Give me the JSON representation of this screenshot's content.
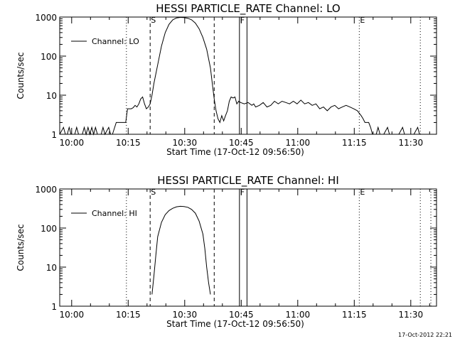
{
  "stamp": "17-Oct-2012 22:21",
  "chart_data": [
    {
      "type": "line",
      "title": "HESSI PARTICLE_RATE Channel: LO",
      "xlabel": "Start Time (17-Oct-12 09:56:50)",
      "ylabel": "Counts/sec",
      "x_unit": "minutes since 09:56:50",
      "xlim": [
        0,
        100
      ],
      "ylim": [
        1,
        1000
      ],
      "yscale": "log",
      "xticks": [
        {
          "x": 3.17,
          "label": "10:00"
        },
        {
          "x": 18.17,
          "label": "10:15"
        },
        {
          "x": 33.17,
          "label": "10:30"
        },
        {
          "x": 48.17,
          "label": "10:45"
        },
        {
          "x": 63.17,
          "label": "11:00"
        },
        {
          "x": 78.17,
          "label": "11:15"
        },
        {
          "x": 93.17,
          "label": "11:30"
        }
      ],
      "yticks": [
        {
          "y": 1,
          "label": "1"
        },
        {
          "y": 10,
          "label": "10"
        },
        {
          "y": 100,
          "label": "100"
        },
        {
          "y": 1000,
          "label": "1000"
        }
      ],
      "markers": [
        {
          "label": "S",
          "x": 24.0,
          "style": "dashed"
        },
        {
          "label": "",
          "x": 41.0,
          "style": "dashed"
        },
        {
          "label": "F",
          "x": 47.7,
          "style": "solid"
        },
        {
          "label": "",
          "x": 49.7,
          "style": "solid"
        },
        {
          "label": "E",
          "x": 79.5,
          "style": "dotted"
        },
        {
          "label": "",
          "x": 17.7,
          "style": "dotted"
        },
        {
          "label": "",
          "x": 95.7,
          "style": "dotted"
        }
      ],
      "legend": "top-left",
      "series": [
        {
          "name": "Channel: LO",
          "points": [
            [
              0,
              1
            ],
            [
              1,
              1.5
            ],
            [
              1.5,
              1
            ],
            [
              2,
              1
            ],
            [
              2.5,
              1.5
            ],
            [
              3,
              1
            ],
            [
              4,
              1
            ],
            [
              4.5,
              1.5
            ],
            [
              5,
              1
            ],
            [
              6,
              1
            ],
            [
              6.5,
              1.5
            ],
            [
              7,
              1
            ],
            [
              7.5,
              1.5
            ],
            [
              8,
              1
            ],
            [
              8.5,
              1.5
            ],
            [
              9,
              1
            ],
            [
              9.5,
              1.5
            ],
            [
              10,
              1
            ],
            [
              11,
              1
            ],
            [
              11.5,
              1.5
            ],
            [
              12,
              1
            ],
            [
              13,
              1.5
            ],
            [
              13.5,
              1
            ],
            [
              14,
              1
            ],
            [
              15,
              2
            ],
            [
              16,
              2
            ],
            [
              17,
              2
            ],
            [
              17.5,
              2
            ],
            [
              18,
              4.5
            ],
            [
              19,
              4.5
            ],
            [
              19.5,
              4.8
            ],
            [
              20,
              5.5
            ],
            [
              20.5,
              5
            ],
            [
              21,
              6
            ],
            [
              21.5,
              8
            ],
            [
              22,
              9
            ],
            [
              22.5,
              6
            ],
            [
              23,
              4.5
            ],
            [
              23.5,
              5
            ],
            [
              24,
              6
            ],
            [
              24.5,
              10
            ],
            [
              25,
              20
            ],
            [
              26,
              60
            ],
            [
              27,
              180
            ],
            [
              28,
              400
            ],
            [
              29,
              650
            ],
            [
              30,
              850
            ],
            [
              31,
              950
            ],
            [
              32,
              980
            ],
            [
              33,
              970
            ],
            [
              34,
              930
            ],
            [
              35,
              850
            ],
            [
              36,
              700
            ],
            [
              37,
              500
            ],
            [
              38,
              300
            ],
            [
              39,
              150
            ],
            [
              40,
              50
            ],
            [
              40.5,
              20
            ],
            [
              41,
              8
            ],
            [
              41.5,
              4
            ],
            [
              42,
              2.5
            ],
            [
              42.5,
              2
            ],
            [
              43,
              3
            ],
            [
              43.5,
              2.2
            ],
            [
              44,
              3
            ],
            [
              44.5,
              4
            ],
            [
              45,
              7
            ],
            [
              45.5,
              9
            ],
            [
              46,
              8.5
            ],
            [
              46.5,
              9
            ],
            [
              47,
              6
            ],
            [
              47.5,
              7
            ],
            [
              48,
              6.5
            ],
            [
              49,
              6
            ],
            [
              50,
              6.5
            ],
            [
              51,
              5.5
            ],
            [
              51.5,
              6
            ],
            [
              52,
              5
            ],
            [
              53,
              5.5
            ],
            [
              54,
              6.5
            ],
            [
              55,
              5
            ],
            [
              56,
              5.5
            ],
            [
              57,
              7
            ],
            [
              58,
              6
            ],
            [
              59,
              7
            ],
            [
              60,
              6.5
            ],
            [
              61,
              6
            ],
            [
              62,
              7
            ],
            [
              63,
              6
            ],
            [
              64,
              7.5
            ],
            [
              65,
              6
            ],
            [
              66,
              6.5
            ],
            [
              67,
              5.5
            ],
            [
              68,
              6
            ],
            [
              69,
              4.5
            ],
            [
              70,
              5
            ],
            [
              71,
              4
            ],
            [
              72,
              5
            ],
            [
              73,
              5.5
            ],
            [
              74,
              4.5
            ],
            [
              75,
              5
            ],
            [
              76,
              5.5
            ],
            [
              77,
              5
            ],
            [
              78,
              4.5
            ],
            [
              79,
              4
            ],
            [
              80,
              3
            ],
            [
              80.5,
              2.5
            ],
            [
              81,
              2
            ],
            [
              82,
              2
            ],
            [
              82.5,
              1.5
            ],
            [
              83,
              1
            ],
            [
              84,
              1
            ],
            [
              84.5,
              1.5
            ],
            [
              85,
              1
            ],
            [
              86,
              1
            ],
            [
              87,
              1.5
            ],
            [
              87.5,
              1
            ],
            [
              89,
              1
            ],
            [
              90,
              1
            ],
            [
              91,
              1.5
            ],
            [
              91.5,
              1
            ],
            [
              93,
              1
            ],
            [
              94,
              1
            ],
            [
              95,
              1.5
            ],
            [
              95.5,
              1
            ],
            [
              96,
              1
            ]
          ]
        }
      ]
    },
    {
      "type": "line",
      "title": "HESSI PARTICLE_RATE Channel: HI",
      "xlabel": "Start Time (17-Oct-12 09:56:50)",
      "ylabel": "Counts/sec",
      "x_unit": "minutes since 09:56:50",
      "xlim": [
        0,
        100
      ],
      "ylim": [
        1,
        1000
      ],
      "yscale": "log",
      "xticks": [
        {
          "x": 3.17,
          "label": "10:00"
        },
        {
          "x": 18.17,
          "label": "10:15"
        },
        {
          "x": 33.17,
          "label": "10:30"
        },
        {
          "x": 48.17,
          "label": "10:45"
        },
        {
          "x": 63.17,
          "label": "11:00"
        },
        {
          "x": 78.17,
          "label": "11:15"
        },
        {
          "x": 93.17,
          "label": "11:30"
        }
      ],
      "yticks": [
        {
          "y": 1,
          "label": "1"
        },
        {
          "y": 10,
          "label": "10"
        },
        {
          "y": 100,
          "label": "100"
        },
        {
          "y": 1000,
          "label": "1000"
        }
      ],
      "markers": [
        {
          "label": "S",
          "x": 24.0,
          "style": "dashed"
        },
        {
          "label": "",
          "x": 41.0,
          "style": "dashed"
        },
        {
          "label": "F",
          "x": 47.7,
          "style": "solid"
        },
        {
          "label": "",
          "x": 49.7,
          "style": "solid"
        },
        {
          "label": "E",
          "x": 79.5,
          "style": "dotted"
        },
        {
          "label": "",
          "x": 17.7,
          "style": "dotted"
        },
        {
          "label": "",
          "x": 95.7,
          "style": "dotted"
        },
        {
          "label": "",
          "x": 98.5,
          "style": "dotted"
        }
      ],
      "legend": "top-left",
      "series": [
        {
          "name": "Channel: HI",
          "points": [
            [
              24.5,
              2
            ],
            [
              25,
              6
            ],
            [
              25.5,
              20
            ],
            [
              26,
              60
            ],
            [
              27,
              140
            ],
            [
              28,
              220
            ],
            [
              29,
              280
            ],
            [
              30,
              320
            ],
            [
              31,
              350
            ],
            [
              32,
              360
            ],
            [
              33,
              355
            ],
            [
              34,
              340
            ],
            [
              35,
              300
            ],
            [
              36,
              240
            ],
            [
              37,
              150
            ],
            [
              38,
              70
            ],
            [
              38.5,
              30
            ],
            [
              39,
              10
            ],
            [
              39.5,
              4
            ],
            [
              40,
              2
            ]
          ]
        }
      ]
    }
  ]
}
